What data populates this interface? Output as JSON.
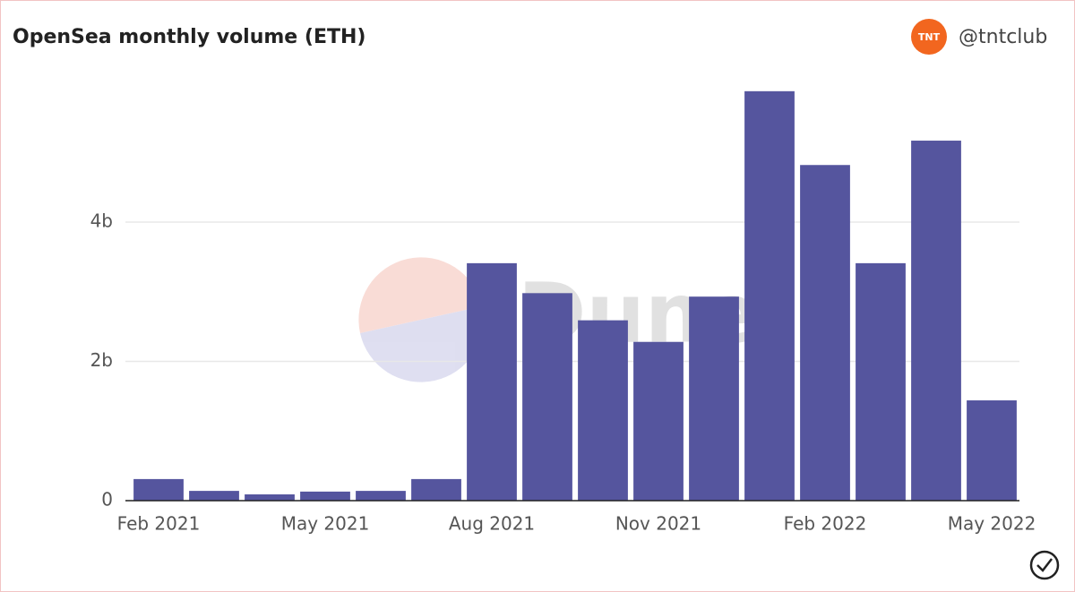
{
  "chart_data": {
    "type": "bar",
    "title": "OpenSea monthly volume (ETH)",
    "author": "@tntclub",
    "logo": "TNT",
    "watermark": "Dune",
    "categories": [
      "Feb 2021",
      null,
      null,
      "May 2021",
      null,
      null,
      "Aug 2021",
      null,
      null,
      "Nov 2021",
      null,
      null,
      "Feb 2022",
      null,
      null,
      "May 2022"
    ],
    "values": [
      310000000,
      140000000,
      90000000,
      130000000,
      140000000,
      310000000,
      3410000000,
      2980000000,
      2590000000,
      2280000000,
      2930000000,
      5880000000,
      4820000000,
      3410000000,
      5170000000,
      1440000000
    ],
    "color": "#55559e",
    "ylim": [
      0,
      6000000000
    ],
    "yticks": [
      0,
      {
        "value": 2000000000,
        "label": "2b"
      },
      {
        "value": 4000000000,
        "label": "4b"
      }
    ],
    "grid": true
  }
}
